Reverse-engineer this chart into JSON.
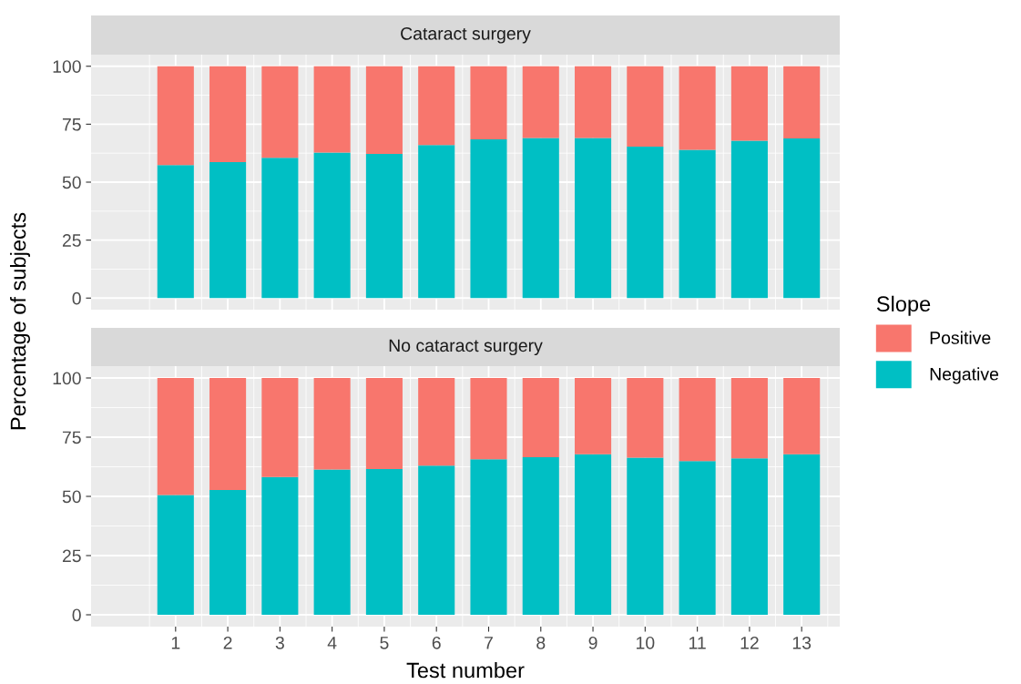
{
  "chart_data": [
    {
      "type": "bar",
      "title": "Cataract surgery",
      "ylabel": "Percentage of subjects",
      "legend_title": "Slope",
      "legend": "right",
      "stacked": true,
      "x": [
        1,
        2,
        3,
        4,
        5,
        6,
        7,
        8,
        9,
        10,
        11,
        12,
        13
      ],
      "series": [
        {
          "name": "Negative",
          "color": "#00bfc4",
          "values": [
            57.4,
            58.6,
            60.5,
            62.8,
            62.2,
            66.0,
            68.5,
            69.1,
            69.1,
            65.3,
            63.9,
            67.9,
            68.9
          ]
        },
        {
          "name": "Positive",
          "color": "#f8766d",
          "values": [
            42.6,
            41.4,
            39.5,
            37.2,
            37.8,
            34.0,
            31.5,
            30.9,
            30.9,
            34.7,
            36.1,
            32.1,
            31.1
          ]
        }
      ],
      "xlim": [
        -0.62,
        13.73
      ],
      "xticks": [
        1,
        2,
        3,
        4,
        5,
        6,
        7,
        8,
        9,
        10,
        11,
        12,
        13
      ],
      "ylim": [
        -5,
        105
      ],
      "yticks": [
        0,
        25,
        50,
        75,
        100
      ],
      "grid": true,
      "tick_labels": "y"
    },
    {
      "type": "bar",
      "title": "No cataract surgery",
      "xlabel": "Test number",
      "stacked": true,
      "x": [
        1,
        2,
        3,
        4,
        5,
        6,
        7,
        8,
        9,
        10,
        11,
        12,
        13
      ],
      "series": [
        {
          "color": "#00bfc4",
          "values": [
            50.6,
            52.7,
            58.2,
            61.3,
            61.5,
            63.0,
            65.7,
            66.5,
            67.8,
            66.3,
            64.9,
            66.1,
            67.8
          ]
        },
        {
          "color": "#f8766d",
          "values": [
            49.4,
            47.3,
            41.8,
            38.7,
            38.5,
            37.0,
            34.3,
            33.5,
            32.2,
            33.7,
            35.1,
            33.9,
            32.2
          ]
        }
      ],
      "xlim": [
        -0.62,
        13.73
      ],
      "xticks": [
        1,
        2,
        3,
        4,
        5,
        6,
        7,
        8,
        9,
        10,
        11,
        12,
        13
      ],
      "ylim": [
        -5,
        105
      ],
      "yticks": [
        0,
        25,
        50,
        75,
        100
      ],
      "grid": true
    }
  ]
}
